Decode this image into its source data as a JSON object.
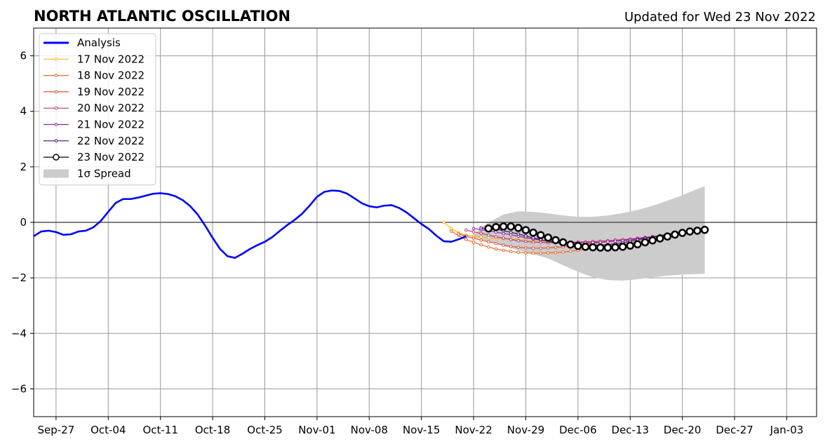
{
  "chart_data": {
    "type": "line",
    "title": "NORTH ATLANTIC OSCILLATION",
    "subtitle": "Updated for Wed 23 Nov 2022",
    "xlabel": "",
    "ylabel": "",
    "x_range": [
      "2022-09-24",
      "2023-01-07"
    ],
    "ylim": [
      -7,
      7
    ],
    "y_ticks": [
      -6,
      -4,
      -2,
      0,
      2,
      4,
      6
    ],
    "y_tick_labels": [
      "−6",
      "−4",
      "−2",
      "0",
      "2",
      "4",
      "6"
    ],
    "x_ticks": [
      "2022-09-27",
      "2022-10-04",
      "2022-10-11",
      "2022-10-18",
      "2022-10-25",
      "2022-11-01",
      "2022-11-08",
      "2022-11-15",
      "2022-11-22",
      "2022-11-29",
      "2022-12-06",
      "2022-12-13",
      "2022-12-20",
      "2022-12-27",
      "2023-01-03"
    ],
    "x_tick_labels": [
      "Sep-27",
      "Oct-04",
      "Oct-11",
      "Oct-18",
      "Oct-25",
      "Nov-01",
      "Nov-08",
      "Nov-15",
      "Nov-22",
      "Nov-29",
      "Dec-06",
      "Dec-13",
      "Dec-20",
      "Dec-27",
      "Jan-03"
    ],
    "grid": true,
    "zero_line": true,
    "legend_position": "top-left",
    "analysis": {
      "name": "Analysis",
      "color": "#0000ff",
      "start_date": "2022-09-24",
      "values": [
        -0.5,
        -0.33,
        -0.3,
        -0.35,
        -0.45,
        -0.43,
        -0.33,
        -0.3,
        -0.18,
        0.05,
        0.38,
        0.7,
        0.84,
        0.84,
        0.89,
        0.96,
        1.03,
        1.05,
        1.02,
        0.94,
        0.8,
        0.58,
        0.28,
        -0.12,
        -0.56,
        -0.96,
        -1.22,
        -1.28,
        -1.13,
        -0.96,
        -0.82,
        -0.7,
        -0.53,
        -0.31,
        -0.1,
        0.09,
        0.31,
        0.6,
        0.92,
        1.1,
        1.15,
        1.13,
        1.04,
        0.87,
        0.69,
        0.58,
        0.54,
        0.6,
        0.62,
        0.52,
        0.36,
        0.15,
        -0.06,
        -0.24,
        -0.48,
        -0.68,
        -0.7,
        -0.61,
        -0.5
      ]
    },
    "spread": {
      "name": "1σ Spread",
      "color": "#cccccc",
      "dates": [
        "2022-11-22",
        "2022-11-23",
        "2022-11-24",
        "2022-11-26",
        "2022-11-28",
        "2022-11-30",
        "2022-12-02",
        "2022-12-04",
        "2022-12-06",
        "2022-12-08",
        "2022-12-10",
        "2022-12-12",
        "2022-12-14",
        "2022-12-16",
        "2022-12-18",
        "2022-12-20",
        "2022-12-22",
        "2022-12-23"
      ],
      "upper": [
        -0.45,
        -0.2,
        0.0,
        0.28,
        0.4,
        0.38,
        0.32,
        0.25,
        0.2,
        0.2,
        0.25,
        0.33,
        0.45,
        0.6,
        0.78,
        0.98,
        1.2,
        1.3
      ],
      "lower": [
        -0.55,
        -0.6,
        -0.7,
        -0.85,
        -1.0,
        -1.15,
        -1.3,
        -1.55,
        -1.78,
        -1.98,
        -2.08,
        -2.1,
        -2.05,
        -1.98,
        -1.92,
        -1.88,
        -1.86,
        -1.85
      ]
    },
    "series": [
      {
        "name": "17 Nov 2022",
        "color": "#fbb61a",
        "start_date": "2022-11-18",
        "values": [
          0.0,
          -0.22,
          -0.38,
          -0.46,
          -0.5,
          -0.53,
          -0.55,
          -0.57,
          -0.58,
          -0.6,
          -0.62,
          -0.64,
          -0.66,
          -0.68,
          -0.7,
          -0.71,
          -0.72,
          -0.72,
          -0.72,
          -0.71,
          -0.7,
          -0.69,
          -0.68,
          -0.67,
          -0.65,
          -0.63,
          -0.6,
          -0.57,
          -0.54,
          -0.51,
          -0.48,
          -0.45,
          -0.43
        ]
      },
      {
        "name": "18 Nov 2022",
        "color": "#ed6925",
        "start_date": "2022-11-19",
        "values": [
          -0.32,
          -0.48,
          -0.62,
          -0.72,
          -0.81,
          -0.89,
          -0.96,
          -1.01,
          -1.05,
          -1.08,
          -1.1,
          -1.11,
          -1.11,
          -1.1,
          -1.09,
          -1.07,
          -1.04,
          -1.01,
          -0.98,
          -0.94,
          -0.9,
          -0.86,
          -0.82,
          -0.78,
          -0.74,
          -0.7,
          -0.65,
          -0.6,
          -0.55,
          -0.5,
          -0.46,
          -0.42
        ]
      },
      {
        "name": "19 Nov 2022",
        "color": "#dd513a",
        "start_date": "2022-11-20",
        "values": [
          -0.42,
          -0.5,
          -0.57,
          -0.64,
          -0.7,
          -0.76,
          -0.82,
          -0.87,
          -0.9,
          -0.92,
          -0.93,
          -0.93,
          -0.92,
          -0.9,
          -0.88,
          -0.85,
          -0.82,
          -0.79,
          -0.76,
          -0.73,
          -0.7,
          -0.67,
          -0.64,
          -0.61,
          -0.58,
          -0.55,
          -0.52,
          -0.49,
          -0.46,
          -0.43,
          -0.4
        ]
      },
      {
        "name": "20 Nov 2022",
        "color": "#b63679",
        "start_date": "2022-11-21",
        "values": [
          -0.28,
          -0.34,
          -0.4,
          -0.46,
          -0.52,
          -0.57,
          -0.62,
          -0.66,
          -0.69,
          -0.71,
          -0.72,
          -0.73,
          -0.73,
          -0.73,
          -0.72,
          -0.71,
          -0.7,
          -0.69,
          -0.68,
          -0.66,
          -0.64,
          -0.62,
          -0.6,
          -0.57,
          -0.54,
          -0.51,
          -0.48,
          -0.45,
          -0.42,
          -0.4
        ]
      },
      {
        "name": "21 Nov 2022",
        "color": "#8a2aa0",
        "start_date": "2022-11-22",
        "values": [
          -0.22,
          -0.26,
          -0.3,
          -0.35,
          -0.4,
          -0.45,
          -0.5,
          -0.55,
          -0.6,
          -0.64,
          -0.67,
          -0.7,
          -0.72,
          -0.73,
          -0.74,
          -0.74,
          -0.73,
          -0.72,
          -0.7,
          -0.68,
          -0.66,
          -0.63,
          -0.6,
          -0.56,
          -0.52,
          -0.48,
          -0.44,
          -0.4,
          -0.37
        ]
      },
      {
        "name": "22 Nov 2022",
        "color": "#4a0c6b",
        "start_date": "2022-11-23",
        "values": [
          -0.2,
          -0.22,
          -0.25,
          -0.3,
          -0.36,
          -0.42,
          -0.49,
          -0.56,
          -0.62,
          -0.68,
          -0.73,
          -0.77,
          -0.8,
          -0.82,
          -0.83,
          -0.83,
          -0.82,
          -0.8,
          -0.77,
          -0.73,
          -0.68,
          -0.63,
          -0.58,
          -0.53,
          -0.48,
          -0.43,
          -0.38,
          -0.33
        ]
      },
      {
        "name": "23 Nov 2022",
        "color": "#000000",
        "start_date": "2022-11-24",
        "values": [
          -0.22,
          -0.17,
          -0.15,
          -0.15,
          -0.2,
          -0.28,
          -0.37,
          -0.46,
          -0.55,
          -0.64,
          -0.72,
          -0.8,
          -0.85,
          -0.88,
          -0.9,
          -0.91,
          -0.91,
          -0.9,
          -0.88,
          -0.84,
          -0.79,
          -0.72,
          -0.65,
          -0.58,
          -0.51,
          -0.44,
          -0.38,
          -0.33,
          -0.3,
          -0.27
        ]
      }
    ]
  }
}
